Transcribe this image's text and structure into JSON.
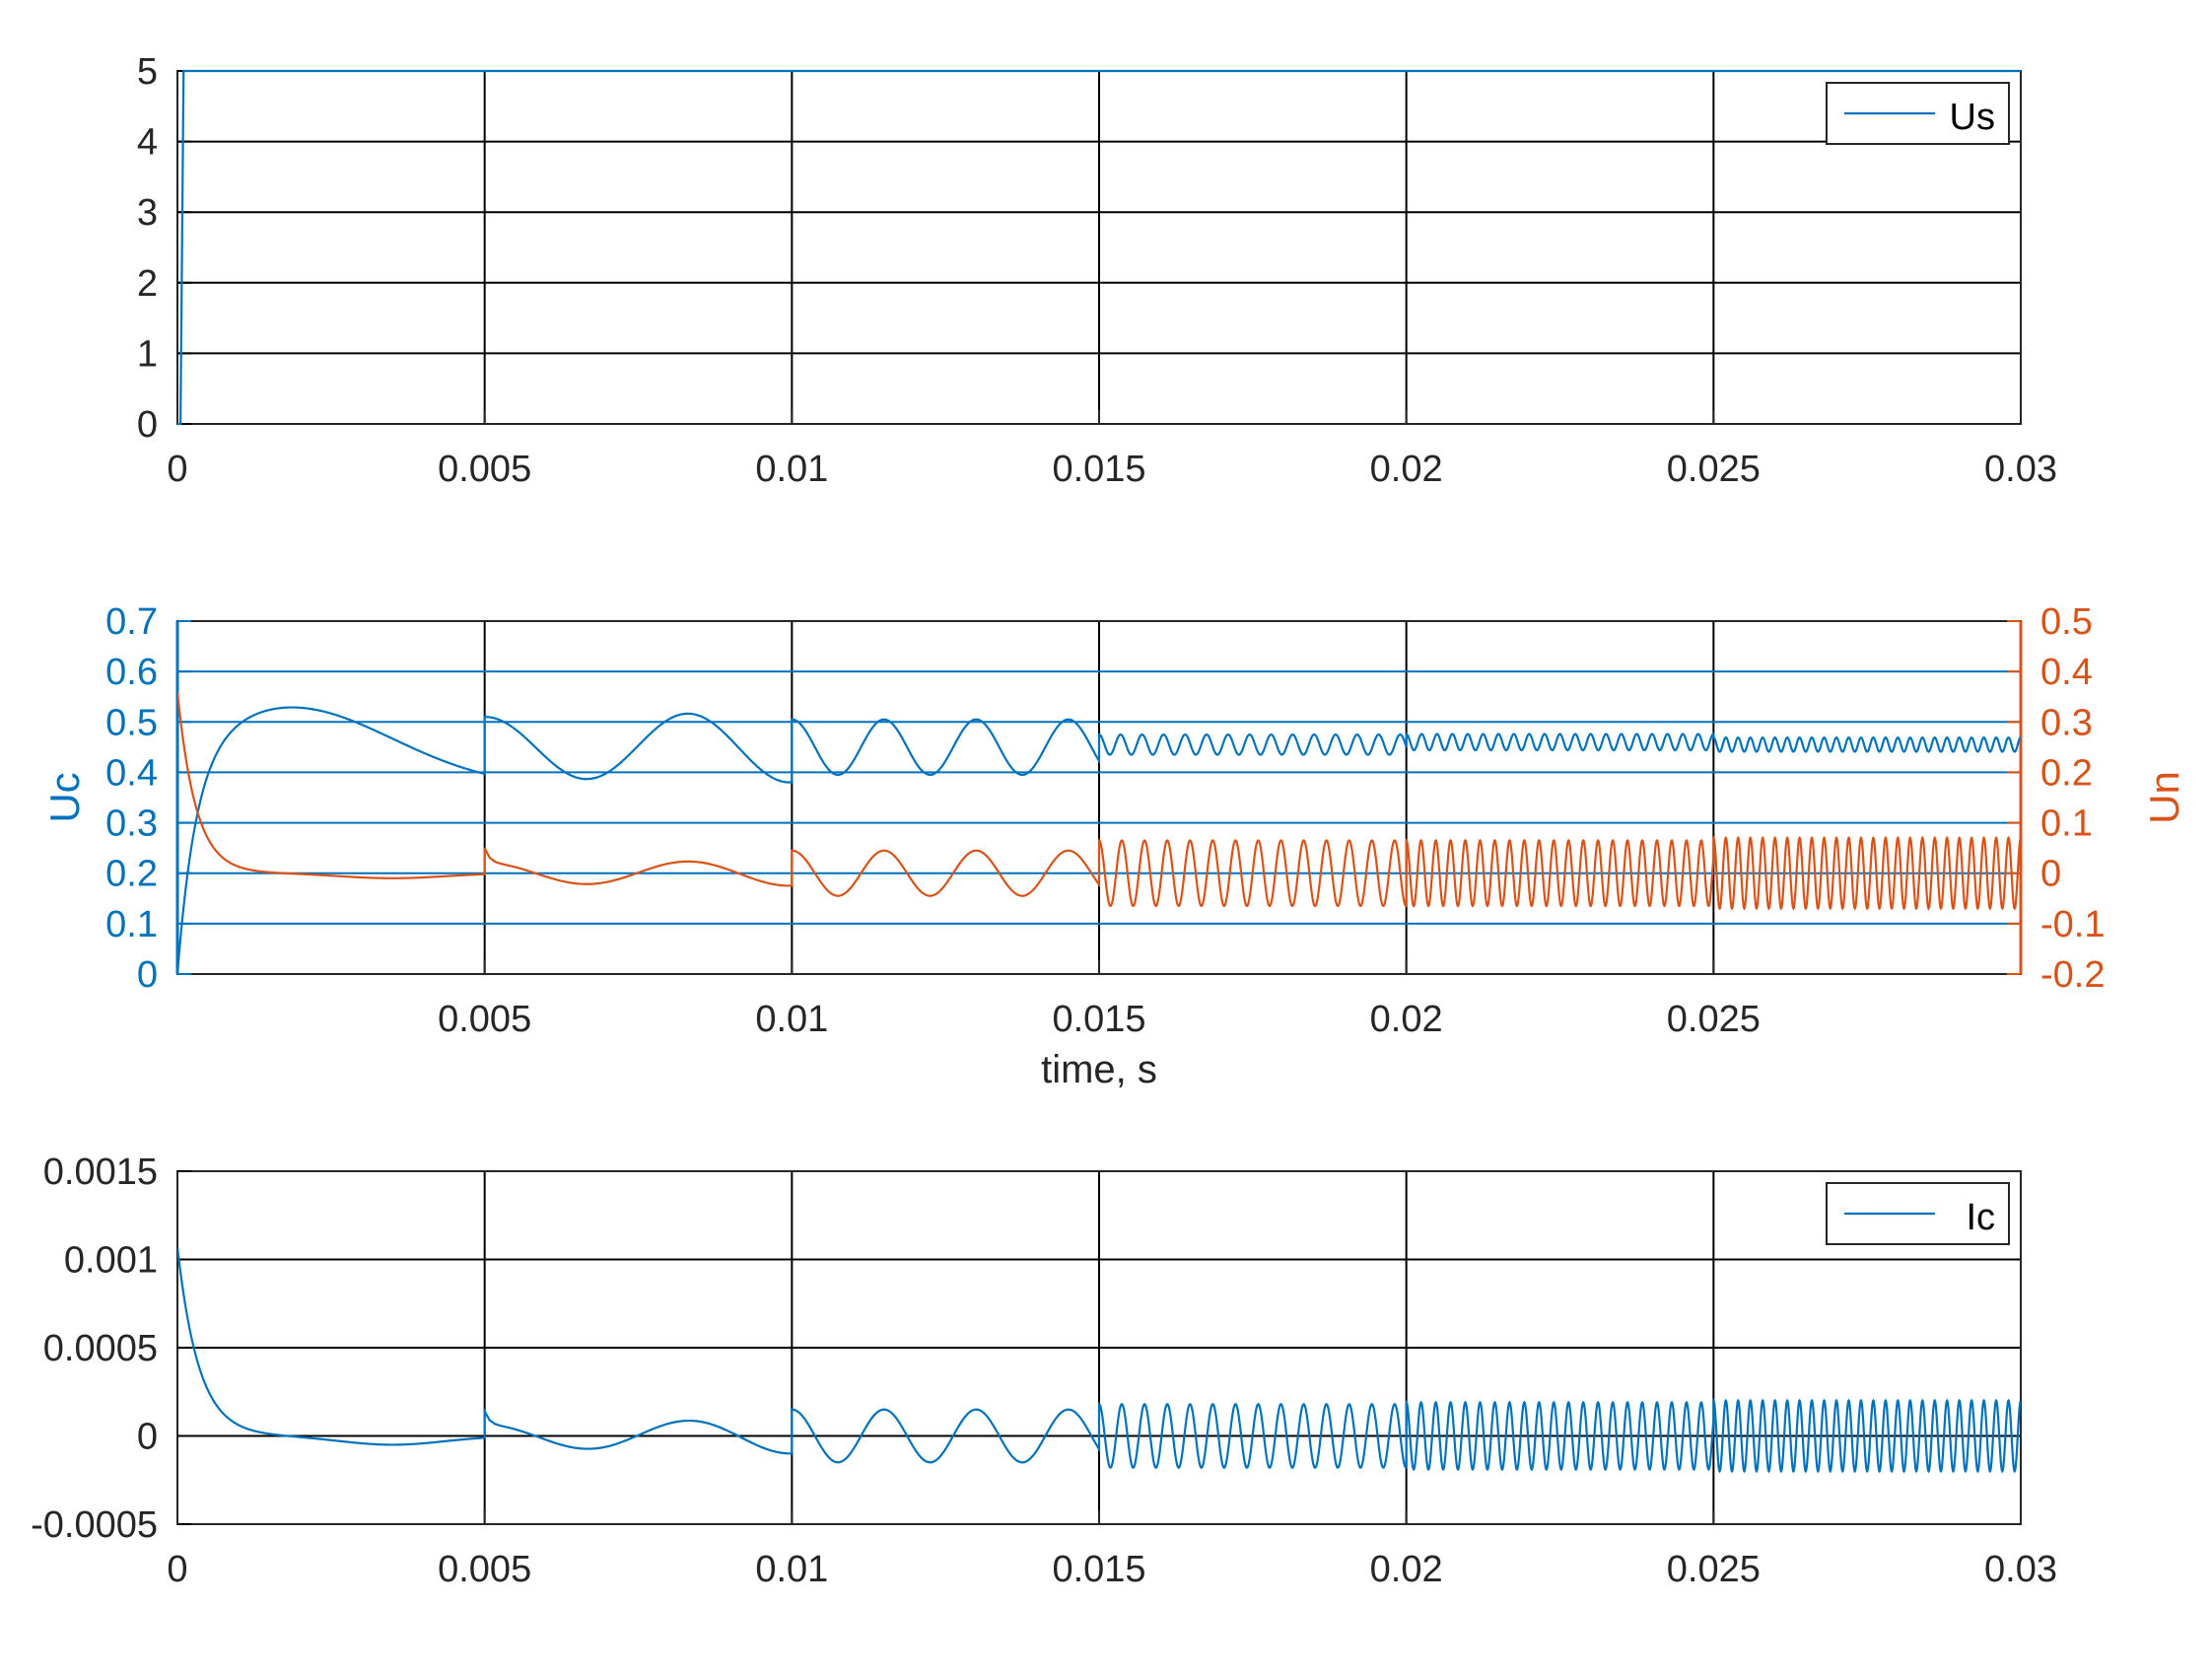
{
  "colors": {
    "blue": "#0072BD",
    "orange": "#D95319",
    "grid": "#000000",
    "axis": "#262626",
    "background": "#ffffff"
  },
  "chart_data": [
    {
      "type": "line",
      "xlim": [
        0,
        0.03
      ],
      "ylim": [
        0,
        5
      ],
      "xticks": [
        "0",
        "0.005",
        "0.01",
        "0.015",
        "0.02",
        "0.025",
        "0.03"
      ],
      "yticks": [
        "0",
        "1",
        "2",
        "3",
        "4",
        "5"
      ],
      "grid": true,
      "legend": "top-right",
      "series": [
        {
          "name": "Us",
          "color": "#0072BD",
          "x": [
            0,
            5e-05,
            0.0001,
            0.03
          ],
          "y": [
            0,
            0,
            5,
            5
          ]
        }
      ]
    },
    {
      "type": "line",
      "xlim": [
        0,
        0.03
      ],
      "xlabel": "time, s",
      "xticks": [
        "0.005",
        "0.01",
        "0.015",
        "0.02",
        "0.025"
      ],
      "ylabel_left": "Uc",
      "ylabel_right": "Un",
      "ylim_left": [
        0,
        0.7
      ],
      "ylim_right": [
        -0.2,
        0.5
      ],
      "yticks_left": [
        "0",
        "0.1",
        "0.2",
        "0.3",
        "0.4",
        "0.5",
        "0.6",
        "0.7"
      ],
      "yticks_right": [
        "-0.2",
        "-0.1",
        "0",
        "0.1",
        "0.2",
        "0.3",
        "0.4",
        "0.5"
      ],
      "grid": true,
      "legend": "none",
      "series": [
        {
          "name": "Uc",
          "axis": "left",
          "color": "#0072BD",
          "segments": [
            {
              "t0": 0,
              "t1": 0.005,
              "base": 0.37,
              "peak": 0.53,
              "peak_t": 0.0018,
              "rise_tau": 0.0003
            },
            {
              "t0": 0.005,
              "t1": 0.01,
              "center": 0.45,
              "amp_start": 0.06,
              "amp_end": 0.07,
              "period": 0.0033
            },
            {
              "t0": 0.01,
              "t1": 0.015,
              "center": 0.45,
              "amp": 0.055,
              "period": 0.0015
            },
            {
              "t0": 0.015,
              "t1": 0.02,
              "center": 0.455,
              "amp": 0.02,
              "period": 0.00035
            },
            {
              "t0": 0.02,
              "t1": 0.025,
              "center": 0.46,
              "amp": 0.016,
              "period": 0.00025
            },
            {
              "t0": 0.025,
              "t1": 0.03,
              "center": 0.455,
              "amp": 0.014,
              "period": 0.0002
            }
          ]
        },
        {
          "name": "Un",
          "axis": "right",
          "color": "#D95319",
          "segments": [
            {
              "t0": 0,
              "t1": 0.005,
              "start": 0.36,
              "settle": 0.0,
              "tau": 0.0003,
              "dip": -0.01,
              "dip_t": 0.0035
            },
            {
              "t0": 0.005,
              "t1": 0.01,
              "center": 0.0,
              "amp_start": 0.02,
              "amp_end": 0.025,
              "period": 0.0033,
              "spike": 0.03
            },
            {
              "t0": 0.01,
              "t1": 0.015,
              "center": 0.0,
              "amp": 0.045,
              "period": 0.0015
            },
            {
              "t0": 0.015,
              "t1": 0.02,
              "center": 0.0,
              "amp": 0.065,
              "period": 0.00037
            },
            {
              "t0": 0.02,
              "t1": 0.025,
              "center": 0.0,
              "amp": 0.065,
              "period": 0.00024
            },
            {
              "t0": 0.025,
              "t1": 0.03,
              "center": 0.0,
              "amp": 0.07,
              "period": 0.0002
            }
          ]
        }
      ]
    },
    {
      "type": "line",
      "xlim": [
        0,
        0.03
      ],
      "ylim": [
        -0.0005,
        0.0015
      ],
      "xticks": [
        "0",
        "0.005",
        "0.01",
        "0.015",
        "0.02",
        "0.025",
        "0.03"
      ],
      "yticks": [
        "-0.0005",
        "0",
        "0.0005",
        "0.001",
        "0.0015"
      ],
      "grid": true,
      "legend": "top-right",
      "series": [
        {
          "name": "Ic",
          "color": "#0072BD",
          "segments": [
            {
              "t0": 0,
              "t1": 0.005,
              "start": 0.00107,
              "settle": 0.0,
              "tau": 0.00035,
              "dip": -5e-05,
              "dip_t": 0.0035
            },
            {
              "t0": 0.005,
              "t1": 0.01,
              "center": 0.0,
              "amp_start": 6e-05,
              "amp_end": 0.0001,
              "period": 0.0033,
              "spike": 8e-05
            },
            {
              "t0": 0.01,
              "t1": 0.015,
              "center": 0.0,
              "amp": 0.00015,
              "period": 0.0015
            },
            {
              "t0": 0.015,
              "t1": 0.02,
              "center": 0.0,
              "amp": 0.00018,
              "period": 0.00037
            },
            {
              "t0": 0.02,
              "t1": 0.025,
              "center": 0.0,
              "amp": 0.00019,
              "period": 0.00024
            },
            {
              "t0": 0.025,
              "t1": 0.03,
              "center": 0.0,
              "amp": 0.0002,
              "period": 0.0002
            }
          ]
        }
      ]
    }
  ]
}
